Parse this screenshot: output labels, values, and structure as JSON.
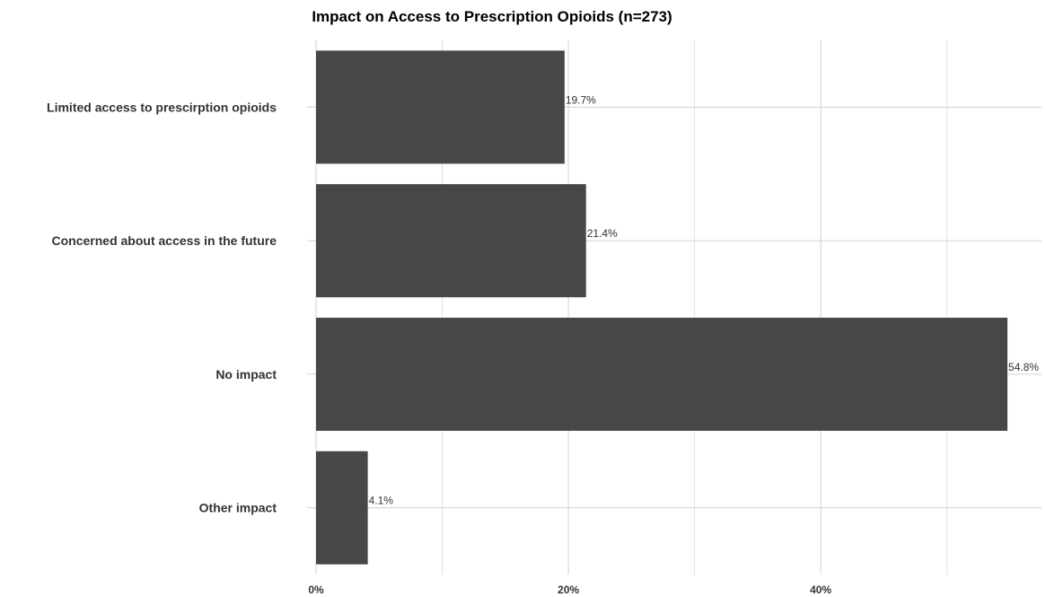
{
  "chart_data": {
    "type": "bar",
    "orientation": "horizontal",
    "title": "Impact on Access to Prescription Opioids (n=273)",
    "xlabel": "",
    "ylabel": "",
    "categories": [
      "Limited access to prescirption opioids",
      "Concerned about access in the future",
      "No impact",
      "Other impact"
    ],
    "values": [
      19.7,
      21.4,
      54.8,
      4.1
    ],
    "data_labels": [
      "19.7%",
      "21.4%",
      "54.8%",
      "4.1%"
    ],
    "xlim": [
      0,
      57.5
    ],
    "x_ticks": [
      0,
      20,
      40
    ],
    "x_tick_labels": [
      "0%",
      "20%",
      "40%"
    ],
    "grid": true,
    "legend": "none",
    "colors": {
      "bar": "#474747",
      "grid_major": "#d0d0d0",
      "grid_minor": "#e2e2e2",
      "text": "#333333"
    }
  }
}
